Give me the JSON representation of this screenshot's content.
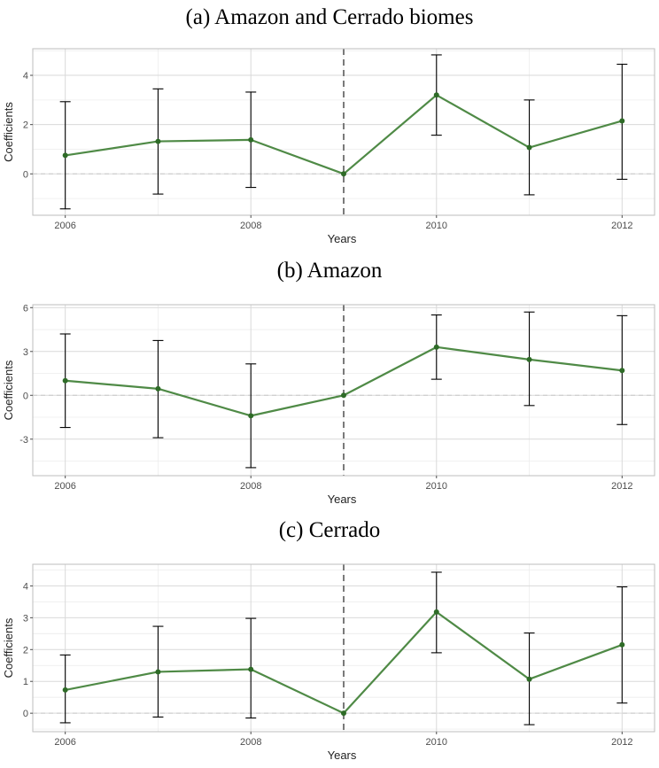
{
  "colors": {
    "line": "#4f8a46",
    "point": "#2e6b27",
    "errorbar": "#000000",
    "grid_major": "#d9d9d9",
    "grid_minor": "#ececec",
    "panel_border": "#bdbdbd",
    "reference_vline": "#7a7a7a",
    "zero_line": "#c8c8c8"
  },
  "chart_data": [
    {
      "type": "line",
      "title": "(a) Amazon and Cerrado biomes",
      "xlabel": "Years",
      "ylabel": "Coefficients",
      "x": [
        2006,
        2007,
        2008,
        2009,
        2010,
        2011,
        2012
      ],
      "values": [
        0.75,
        1.32,
        1.38,
        0.0,
        3.2,
        1.07,
        2.15
      ],
      "lower": [
        -1.42,
        -0.82,
        -0.55,
        0.0,
        1.57,
        -0.85,
        -0.22
      ],
      "upper": [
        2.93,
        3.45,
        3.32,
        0.0,
        4.83,
        3.0,
        4.45
      ],
      "xticks": [
        2006,
        2008,
        2010,
        2012
      ],
      "xtick_labels": [
        "2006",
        "2008",
        "2010",
        "2012"
      ],
      "yticks": [
        0,
        2,
        4
      ],
      "ytick_labels": [
        "0",
        "2",
        "4"
      ],
      "xlim": [
        2005.65,
        2012.35
      ],
      "ylim": [
        -1.68,
        5.08
      ],
      "reference_vline_x": 2009,
      "zero_hline": 0,
      "grid": true
    },
    {
      "type": "line",
      "title": "(b) Amazon",
      "xlabel": "Years",
      "ylabel": "Coefficients",
      "x": [
        2006,
        2007,
        2008,
        2009,
        2010,
        2011,
        2012
      ],
      "values": [
        1.0,
        0.45,
        -1.4,
        0.0,
        3.3,
        2.45,
        1.7
      ],
      "lower": [
        -2.2,
        -2.9,
        -4.95,
        0.0,
        1.1,
        -0.7,
        -2.0
      ],
      "upper": [
        4.2,
        3.75,
        2.15,
        0.0,
        5.5,
        5.7,
        5.45
      ],
      "xticks": [
        2006,
        2008,
        2010,
        2012
      ],
      "xtick_labels": [
        "2006",
        "2008",
        "2010",
        "2012"
      ],
      "yticks": [
        -3,
        0,
        3,
        6
      ],
      "ytick_labels": [
        "-3",
        "0",
        "3",
        "6"
      ],
      "xlim": [
        2005.65,
        2012.35
      ],
      "ylim": [
        -5.5,
        6.2
      ],
      "reference_vline_x": 2009,
      "zero_hline": 0,
      "grid": true
    },
    {
      "type": "line",
      "title": "(c) Cerrado",
      "xlabel": "Years",
      "ylabel": "Coefficients",
      "x": [
        2006,
        2007,
        2008,
        2009,
        2010,
        2011,
        2012
      ],
      "values": [
        0.73,
        1.3,
        1.38,
        0.0,
        3.18,
        1.07,
        2.15
      ],
      "lower": [
        -0.3,
        -0.12,
        -0.15,
        0.0,
        1.9,
        -0.36,
        0.32
      ],
      "upper": [
        1.83,
        2.73,
        2.98,
        0.0,
        4.43,
        2.52,
        3.97
      ],
      "xticks": [
        2006,
        2008,
        2010,
        2012
      ],
      "xtick_labels": [
        "2006",
        "2008",
        "2010",
        "2012"
      ],
      "yticks": [
        0,
        1,
        2,
        3,
        4
      ],
      "ytick_labels": [
        "0",
        "1",
        "2",
        "3",
        "4"
      ],
      "xlim": [
        2005.65,
        2012.35
      ],
      "ylim": [
        -0.58,
        4.68
      ],
      "reference_vline_x": 2009,
      "zero_hline": 0,
      "grid": true
    }
  ]
}
